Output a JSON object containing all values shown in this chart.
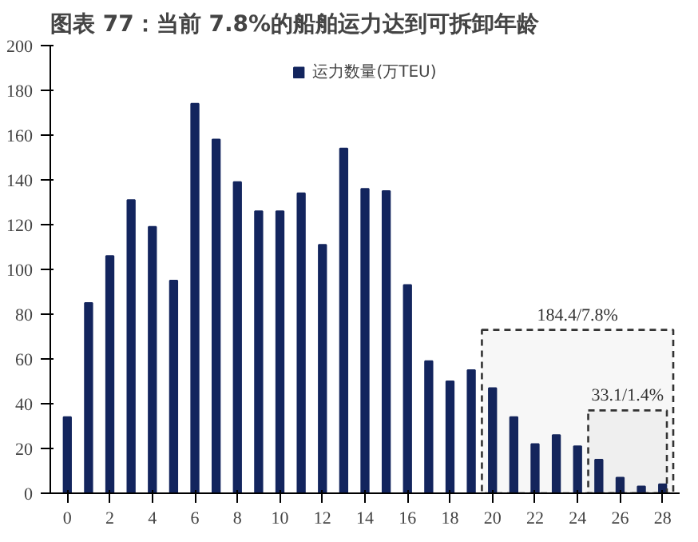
{
  "chart_data": {
    "type": "bar",
    "title": "图表 77：当前 7.8%的船舶运力达到可拆卸年龄",
    "x": [
      0,
      1,
      2,
      3,
      4,
      5,
      6,
      7,
      8,
      9,
      10,
      11,
      12,
      13,
      14,
      15,
      16,
      17,
      18,
      19,
      20,
      21,
      22,
      23,
      24,
      25,
      26,
      27,
      28
    ],
    "series": [
      {
        "name": "运力数量(万TEU)",
        "color": "#13255e",
        "values": [
          34,
          85,
          106,
          131,
          119,
          95,
          174,
          158,
          139,
          126,
          126,
          134,
          111,
          154,
          136,
          135,
          93,
          59,
          50,
          55,
          47,
          34,
          22,
          26,
          21,
          15,
          7,
          3,
          4
        ]
      }
    ],
    "xlim": [
      -0.8,
      28.8
    ],
    "xticks": [
      0,
      2,
      4,
      6,
      8,
      10,
      12,
      14,
      16,
      18,
      20,
      22,
      24,
      26,
      28
    ],
    "ylim": [
      0,
      200
    ],
    "yticks": [
      0,
      20,
      40,
      60,
      80,
      100,
      120,
      140,
      160,
      180,
      200
    ],
    "legend": "top",
    "grid": false,
    "bands": [
      {
        "axis": "x",
        "from": 19.5,
        "to": 28.5,
        "label": "184.4/7.8%",
        "color": "#333333"
      },
      {
        "axis": "x",
        "from": 24.5,
        "to": 28.2,
        "label": "33.1/1.4%",
        "color": "#333333"
      }
    ]
  }
}
